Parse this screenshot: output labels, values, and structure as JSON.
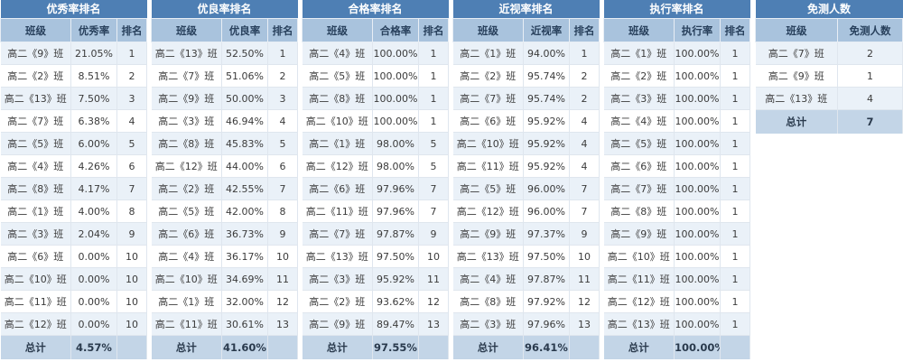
{
  "panels": [
    {
      "title": "优秀率排名",
      "headers": [
        "班级",
        "优秀率",
        "排名"
      ],
      "rows": [
        [
          "高二《9》班",
          "21.05%",
          "1"
        ],
        [
          "高二《2》班",
          "8.51%",
          "2"
        ],
        [
          "高二《13》班",
          "7.50%",
          "3"
        ],
        [
          "高二《7》班",
          "6.38%",
          "4"
        ],
        [
          "高二《5》班",
          "6.00%",
          "5"
        ],
        [
          "高二《4》班",
          "4.26%",
          "6"
        ],
        [
          "高二《8》班",
          "4.17%",
          "7"
        ],
        [
          "高二《1》班",
          "4.00%",
          "8"
        ],
        [
          "高二《3》班",
          "2.04%",
          "9"
        ],
        [
          "高二《6》班",
          "0.00%",
          "10"
        ],
        [
          "高二《10》班",
          "0.00%",
          "10"
        ],
        [
          "高二《11》班",
          "0.00%",
          "10"
        ],
        [
          "高二《12》班",
          "0.00%",
          "10"
        ]
      ],
      "total": [
        "总计",
        "4.57%",
        ""
      ]
    },
    {
      "title": "优良率排名",
      "headers": [
        "班级",
        "优良率",
        "排名"
      ],
      "rows": [
        [
          "高二《13》班",
          "52.50%",
          "1"
        ],
        [
          "高二《7》班",
          "51.06%",
          "2"
        ],
        [
          "高二《9》班",
          "50.00%",
          "3"
        ],
        [
          "高二《3》班",
          "46.94%",
          "4"
        ],
        [
          "高二《8》班",
          "45.83%",
          "5"
        ],
        [
          "高二《12》班",
          "44.00%",
          "6"
        ],
        [
          "高二《2》班",
          "42.55%",
          "7"
        ],
        [
          "高二《5》班",
          "42.00%",
          "8"
        ],
        [
          "高二《6》班",
          "36.73%",
          "9"
        ],
        [
          "高二《4》班",
          "36.17%",
          "10"
        ],
        [
          "高二《10》班",
          "34.69%",
          "11"
        ],
        [
          "高二《1》班",
          "32.00%",
          "12"
        ],
        [
          "高二《11》班",
          "30.61%",
          "13"
        ]
      ],
      "total": [
        "总计",
        "41.60%",
        ""
      ]
    },
    {
      "title": "合格率排名",
      "headers": [
        "班级",
        "合格率",
        "排名"
      ],
      "rows": [
        [
          "高二《4》班",
          "100.00%",
          "1"
        ],
        [
          "高二《5》班",
          "100.00%",
          "1"
        ],
        [
          "高二《8》班",
          "100.00%",
          "1"
        ],
        [
          "高二《10》班",
          "100.00%",
          "1"
        ],
        [
          "高二《1》班",
          "98.00%",
          "5"
        ],
        [
          "高二《12》班",
          "98.00%",
          "5"
        ],
        [
          "高二《6》班",
          "97.96%",
          "7"
        ],
        [
          "高二《11》班",
          "97.96%",
          "7"
        ],
        [
          "高二《7》班",
          "97.87%",
          "9"
        ],
        [
          "高二《13》班",
          "97.50%",
          "10"
        ],
        [
          "高二《3》班",
          "95.92%",
          "11"
        ],
        [
          "高二《2》班",
          "93.62%",
          "12"
        ],
        [
          "高二《9》班",
          "89.47%",
          "13"
        ]
      ],
      "total": [
        "总计",
        "97.55%",
        ""
      ]
    },
    {
      "title": "近视率排名",
      "headers": [
        "班级",
        "近视率",
        "排名"
      ],
      "rows": [
        [
          "高二《1》班",
          "94.00%",
          "1"
        ],
        [
          "高二《2》班",
          "95.74%",
          "2"
        ],
        [
          "高二《7》班",
          "95.74%",
          "2"
        ],
        [
          "高二《6》班",
          "95.92%",
          "4"
        ],
        [
          "高二《10》班",
          "95.92%",
          "4"
        ],
        [
          "高二《11》班",
          "95.92%",
          "4"
        ],
        [
          "高二《5》班",
          "96.00%",
          "7"
        ],
        [
          "高二《12》班",
          "96.00%",
          "7"
        ],
        [
          "高二《9》班",
          "97.37%",
          "9"
        ],
        [
          "高二《13》班",
          "97.50%",
          "10"
        ],
        [
          "高二《4》班",
          "97.87%",
          "11"
        ],
        [
          "高二《8》班",
          "97.92%",
          "12"
        ],
        [
          "高二《3》班",
          "97.96%",
          "13"
        ]
      ],
      "total": [
        "总计",
        "96.41%",
        ""
      ]
    },
    {
      "title": "执行率排名",
      "headers": [
        "班级",
        "执行率",
        "排名"
      ],
      "rows": [
        [
          "高二《1》班",
          "100.00%",
          "1"
        ],
        [
          "高二《2》班",
          "100.00%",
          "1"
        ],
        [
          "高二《3》班",
          "100.00%",
          "1"
        ],
        [
          "高二《4》班",
          "100.00%",
          "1"
        ],
        [
          "高二《5》班",
          "100.00%",
          "1"
        ],
        [
          "高二《6》班",
          "100.00%",
          "1"
        ],
        [
          "高二《7》班",
          "100.00%",
          "1"
        ],
        [
          "高二《8》班",
          "100.00%",
          "1"
        ],
        [
          "高二《9》班",
          "100.00%",
          "1"
        ],
        [
          "高二《10》班",
          "100.00%",
          "1"
        ],
        [
          "高二《11》班",
          "100.00%",
          "1"
        ],
        [
          "高二《12》班",
          "100.00%",
          "1"
        ],
        [
          "高二《13》班",
          "100.00%",
          "1"
        ]
      ],
      "total": [
        "总计",
        "100.00%",
        ""
      ]
    },
    {
      "title": "免测人数",
      "headers": [
        "班级",
        "免测人数"
      ],
      "rows": [
        [
          "高二《7》班",
          "2"
        ],
        [
          "高二《9》班",
          "1"
        ],
        [
          "高二《13》班",
          "4"
        ]
      ],
      "total": [
        "总计",
        "7"
      ]
    }
  ],
  "colors": {
    "title_bg": "#4e7fb4",
    "header_bg": "#a9c3dd",
    "row_alt_bg": "#eaf1f8",
    "total_bg": "#c3d5e7"
  }
}
